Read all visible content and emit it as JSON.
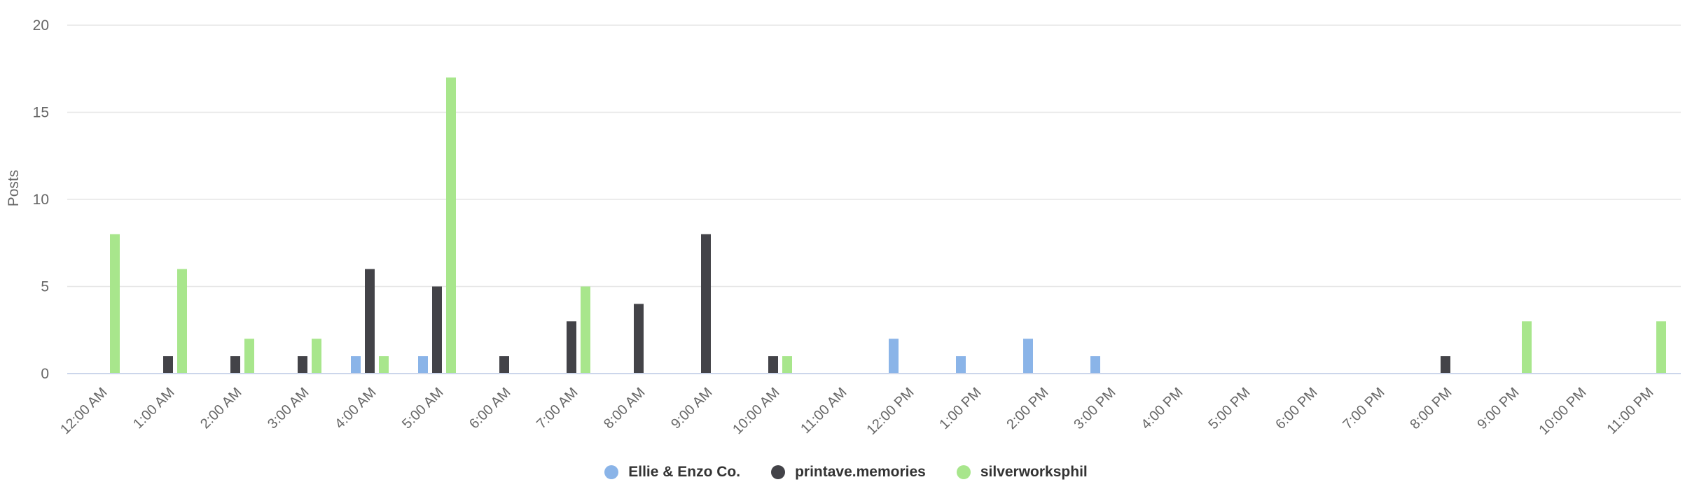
{
  "chart_data": {
    "type": "bar",
    "title": "",
    "xlabel": "",
    "ylabel": "Posts",
    "ylim": [
      0,
      20
    ],
    "yticks": [
      0,
      5,
      10,
      15,
      20
    ],
    "grid": true,
    "legend_position": "bottom",
    "categories": [
      "12:00 AM",
      "1:00 AM",
      "2:00 AM",
      "3:00 AM",
      "4:00 AM",
      "5:00 AM",
      "6:00 AM",
      "7:00 AM",
      "8:00 AM",
      "9:00 AM",
      "10:00 AM",
      "11:00 AM",
      "12:00 PM",
      "1:00 PM",
      "2:00 PM",
      "3:00 PM",
      "4:00 PM",
      "5:00 PM",
      "6:00 PM",
      "7:00 PM",
      "8:00 PM",
      "9:00 PM",
      "10:00 PM",
      "11:00 PM"
    ],
    "series": [
      {
        "name": "Ellie & Enzo Co.",
        "color": "#8ab4e8",
        "values": [
          0,
          0,
          0,
          0,
          1,
          1,
          0,
          0,
          0,
          0,
          0,
          0,
          2,
          1,
          2,
          1,
          0,
          0,
          0,
          0,
          0,
          0,
          0,
          0
        ]
      },
      {
        "name": "printave.memories",
        "color": "#434348",
        "values": [
          0,
          1,
          1,
          1,
          6,
          5,
          1,
          3,
          4,
          8,
          1,
          0,
          0,
          0,
          0,
          0,
          0,
          0,
          0,
          0,
          1,
          0,
          0,
          0
        ]
      },
      {
        "name": "silverworksphil",
        "color": "#a8e68c",
        "values": [
          8,
          6,
          2,
          2,
          1,
          17,
          0,
          5,
          0,
          0,
          1,
          0,
          0,
          0,
          0,
          0,
          0,
          0,
          0,
          0,
          0,
          3,
          0,
          3
        ]
      }
    ]
  }
}
